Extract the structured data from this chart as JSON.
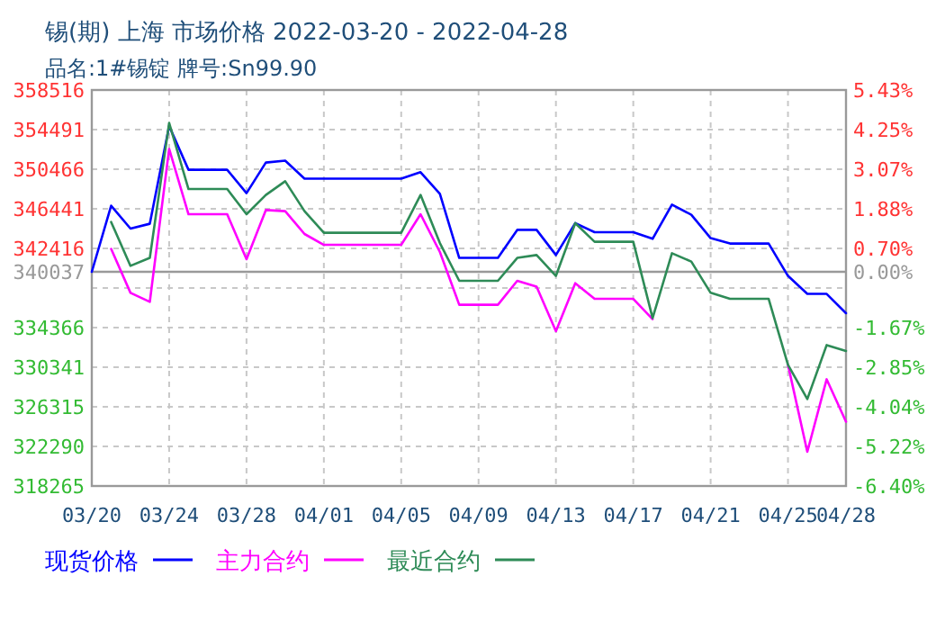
{
  "chart_data": {
    "type": "line",
    "title": "锡(期) 上海 市场价格 2022-03-20 - 2022-04-28",
    "subtitle": "品名:1#锡锭 牌号:Sn99.90",
    "x": [
      "2022-03-20",
      "2022-03-21",
      "2022-03-22",
      "2022-03-23",
      "2022-03-24",
      "2022-03-25",
      "2022-03-26",
      "2022-03-27",
      "2022-03-28",
      "2022-03-29",
      "2022-03-30",
      "2022-03-31",
      "2022-04-01",
      "2022-04-02",
      "2022-04-03",
      "2022-04-04",
      "2022-04-05",
      "2022-04-06",
      "2022-04-07",
      "2022-04-08",
      "2022-04-09",
      "2022-04-10",
      "2022-04-11",
      "2022-04-12",
      "2022-04-13",
      "2022-04-14",
      "2022-04-15",
      "2022-04-16",
      "2022-04-17",
      "2022-04-18",
      "2022-04-19",
      "2022-04-20",
      "2022-04-21",
      "2022-04-22",
      "2022-04-23",
      "2022-04-24",
      "2022-04-25",
      "2022-04-26",
      "2022-04-27",
      "2022-04-28"
    ],
    "series": [
      {
        "name": "现货价格",
        "color": "#0000ff",
        "values": [
          340037,
          346750,
          344430,
          344920,
          354860,
          350410,
          350410,
          350410,
          348030,
          351140,
          351330,
          349500,
          349500,
          349500,
          349500,
          349500,
          349500,
          350160,
          347960,
          341450,
          341450,
          341450,
          344300,
          344300,
          341740,
          344980,
          344060,
          344060,
          344060,
          343390,
          346860,
          345840,
          343460,
          342910,
          342910,
          342910,
          339620,
          337790,
          337790,
          335830
        ]
      },
      {
        "name": "主力合约",
        "color": "#ff00ff",
        "values": [
          null,
          342360,
          337900,
          336980,
          352530,
          345890,
          345890,
          345890,
          341320,
          346310,
          346200,
          343880,
          342780,
          342780,
          342780,
          342780,
          342780,
          345890,
          342050,
          336690,
          336690,
          336690,
          339120,
          338520,
          334000,
          338880,
          337290,
          337290,
          337290,
          335230,
          null,
          null,
          null,
          null,
          null,
          null,
          330580,
          321740,
          329110,
          324800
        ]
      },
      {
        "name": "最近合约",
        "color": "#2e8b57",
        "values": [
          null,
          345100,
          340640,
          341450,
          355170,
          348450,
          348450,
          348450,
          345890,
          347850,
          349240,
          346200,
          344010,
          344010,
          344010,
          344010,
          344010,
          347850,
          342960,
          339120,
          339120,
          339120,
          341450,
          341740,
          339620,
          344980,
          343090,
          343090,
          343090,
          335340,
          341920,
          341080,
          337900,
          337290,
          337290,
          337290,
          330580,
          327100,
          332590,
          331990
        ]
      }
    ],
    "xlim": [
      "2022-03-20",
      "2022-04-28"
    ],
    "xticks": [
      {
        "value": "2022-03-20",
        "label": "03/20"
      },
      {
        "value": "2022-03-24",
        "label": "03/24"
      },
      {
        "value": "2022-03-28",
        "label": "03/28"
      },
      {
        "value": "2022-04-01",
        "label": "04/01"
      },
      {
        "value": "2022-04-05",
        "label": "04/05"
      },
      {
        "value": "2022-04-09",
        "label": "04/09"
      },
      {
        "value": "2022-04-13",
        "label": "04/13"
      },
      {
        "value": "2022-04-17",
        "label": "04/17"
      },
      {
        "value": "2022-04-21",
        "label": "04/21"
      },
      {
        "value": "2022-04-25",
        "label": "04/25"
      },
      {
        "value": "2022-04-28",
        "label": "04/28"
      }
    ],
    "ylim": [
      318265,
      358516
    ],
    "yticks": [
      358516,
      354491,
      350466,
      346441,
      342416,
      {
        "value": 338391,
        "label": null
      },
      334366,
      330341,
      326315,
      322290,
      318265
    ],
    "y2lim": [
      -6.4,
      5.43
    ],
    "y2ticks": [
      {
        "value": 5.43,
        "label": "5.43%"
      },
      {
        "value": 4.25,
        "label": "4.25%"
      },
      {
        "value": 3.07,
        "label": "3.07%"
      },
      {
        "value": 1.88,
        "label": "1.88%"
      },
      {
        "value": 0.7,
        "label": "0.70%"
      },
      {
        "value": 0,
        "label": "0.00%"
      },
      {
        "value": -1.67,
        "label": "-1.67%"
      },
      {
        "value": -2.85,
        "label": "-2.85%"
      },
      {
        "value": -4.04,
        "label": "-4.04%"
      },
      {
        "value": -5.22,
        "label": "-5.22%"
      },
      {
        "value": -6.4,
        "label": "-6.40%"
      }
    ],
    "ref_lines": [
      {
        "axis": "y",
        "value": 340037,
        "label": "340037",
        "color": "#999999"
      }
    ],
    "grid": true,
    "legend": "bottom",
    "line_style": "solid"
  }
}
